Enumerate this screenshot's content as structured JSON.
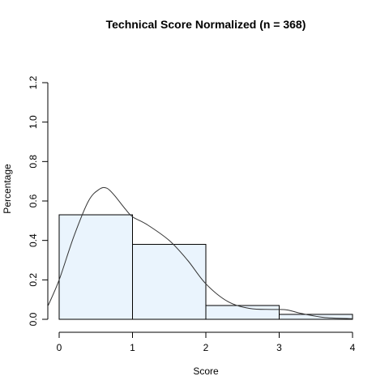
{
  "chart_data": {
    "type": "bar",
    "title": "Technical Score  Normalized (n = 368)",
    "xlabel": "Score",
    "ylabel": "Percentage",
    "bins": [
      {
        "start": 0,
        "end": 1,
        "value": 0.53
      },
      {
        "start": 1,
        "end": 2,
        "value": 0.38
      },
      {
        "start": 2,
        "end": 3,
        "value": 0.07
      },
      {
        "start": 3,
        "end": 4,
        "value": 0.025
      }
    ],
    "density_curve": {
      "x": [
        -0.15,
        0.0,
        0.2,
        0.4,
        0.55,
        0.65,
        0.75,
        0.9,
        1.0,
        1.2,
        1.5,
        1.75,
        2.0,
        2.3,
        2.6,
        2.9,
        3.1,
        3.3,
        3.6,
        4.0
      ],
      "y": [
        0.07,
        0.2,
        0.42,
        0.6,
        0.66,
        0.665,
        0.63,
        0.56,
        0.52,
        0.48,
        0.4,
        0.3,
        0.18,
        0.09,
        0.055,
        0.05,
        0.048,
        0.03,
        0.01,
        0.003
      ]
    },
    "xlim": [
      0,
      4
    ],
    "ylim": [
      0,
      1.2
    ],
    "x_ticks": [
      0,
      1,
      2,
      3,
      4
    ],
    "y_ticks": [
      0.0,
      0.2,
      0.4,
      0.6,
      0.8,
      1.0,
      1.2
    ],
    "x_tick_labels": [
      "0",
      "1",
      "2",
      "3",
      "4"
    ],
    "y_tick_labels": [
      "0.0",
      "0.2",
      "0.4",
      "0.6",
      "0.8",
      "1.0",
      "1.2"
    ],
    "grid": false,
    "bar_fill": "#eaf4fd",
    "bar_stroke": "#000000",
    "curve_color": "#333333"
  }
}
